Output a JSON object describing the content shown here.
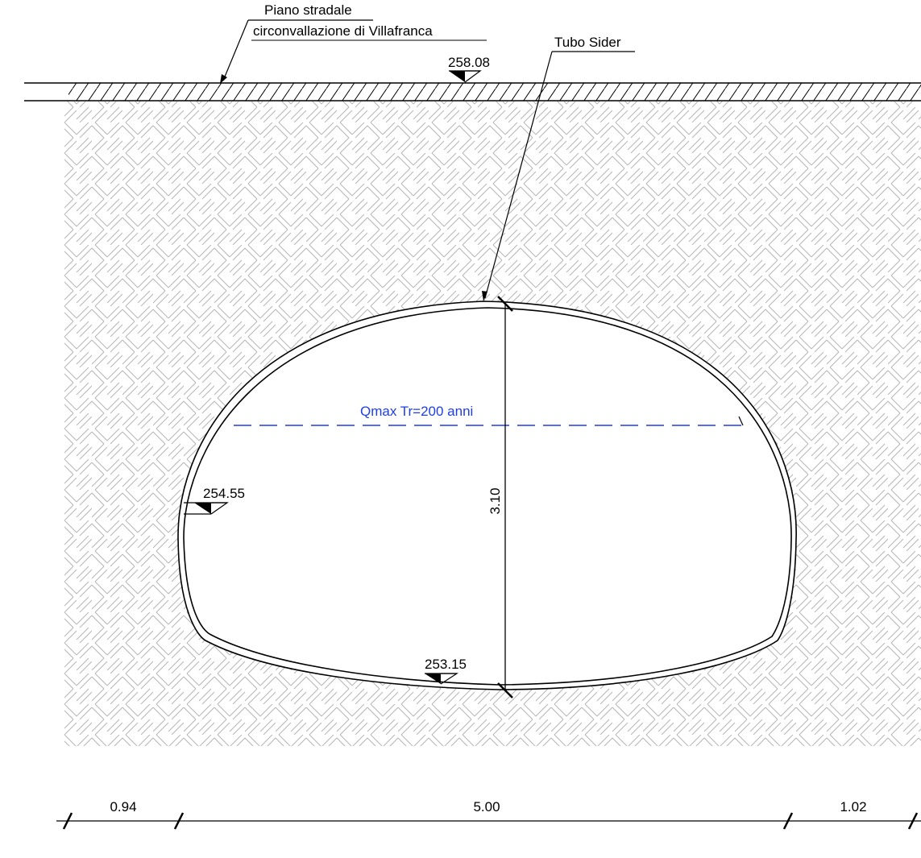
{
  "labels": {
    "road_line1": "Piano stradale",
    "road_line2": "circonvallazione di Villafranca",
    "pipe": "Tubo Sider",
    "water_level": "Qmax Tr=200 anni"
  },
  "elevations": {
    "road": "258.08",
    "springline": "254.55",
    "invert": "253.15"
  },
  "dimensions": {
    "height": "3.10",
    "left": "0.94",
    "width": "5.00",
    "right": "1.02"
  },
  "colors": {
    "lines": "#000000",
    "water_level": "#1f3fe6",
    "soil_hatch": "#b4b4b4"
  }
}
